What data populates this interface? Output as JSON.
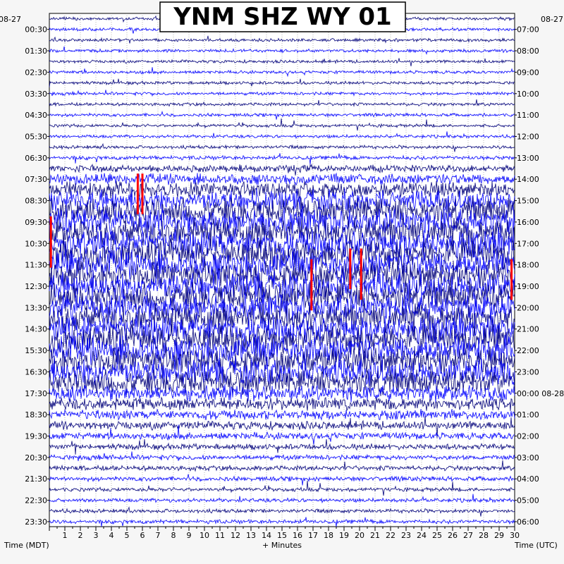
{
  "chart_data": {
    "type": "helicorder",
    "title": "YNM SHZ WY 01",
    "start_date_label": "08-27",
    "end_date_label": "08-28",
    "xlabel": "+ Minutes",
    "left_axis_label": "Time (MDT)",
    "right_axis_label": "Time (UTC)",
    "x_ticks": [
      1,
      2,
      3,
      4,
      5,
      6,
      7,
      8,
      9,
      10,
      11,
      12,
      13,
      14,
      15,
      16,
      17,
      18,
      19,
      20,
      21,
      22,
      23,
      24,
      25,
      26,
      27,
      28,
      29,
      30
    ],
    "xlim": [
      0,
      30
    ],
    "rows_count": 48,
    "minutes_per_row": 30,
    "left_time_labels": [
      "00:30",
      "01:30",
      "02:30",
      "03:30",
      "04:30",
      "05:30",
      "06:30",
      "07:30",
      "08:30",
      "09:30",
      "10:30",
      "11:30",
      "12:30",
      "13:30",
      "14:30",
      "15:30",
      "16:30",
      "17:30",
      "18:30",
      "19:30",
      "20:30",
      "21:30",
      "22:30",
      "23:30"
    ],
    "right_time_labels": [
      "07:00",
      "08:00",
      "09:00",
      "10:00",
      "11:00",
      "12:00",
      "13:00",
      "14:00",
      "15:00",
      "16:00",
      "17:00",
      "18:00",
      "19:00",
      "20:00",
      "21:00",
      "22:00",
      "23:00",
      "00:00 08-28",
      "01:00",
      "02:00",
      "03:00",
      "04:00",
      "05:00",
      "06:00"
    ],
    "trace_colors": [
      "#00007a",
      "#0000ff"
    ],
    "clip_color": "#ff0000",
    "activity_level_by_row": [
      0.05,
      0.05,
      0.05,
      0.05,
      0.05,
      0.05,
      0.05,
      0.05,
      0.05,
      0.05,
      0.05,
      0.05,
      0.06,
      0.08,
      0.2,
      0.35,
      0.55,
      0.75,
      0.9,
      1,
      1,
      1,
      1,
      1,
      1,
      1,
      1,
      1,
      1,
      1,
      1,
      1,
      1,
      0.95,
      0.85,
      0.55,
      0.4,
      0.3,
      0.25,
      0.2,
      0.15,
      0.12,
      0.12,
      0.1,
      0.08,
      0.08,
      0.08,
      0.08
    ],
    "clipped_events": [
      {
        "row": 15,
        "minute": 5.7,
        "rows": 3
      },
      {
        "row": 15,
        "minute": 6.0,
        "rows": 3
      },
      {
        "row": 19,
        "minute": 0.1,
        "rows": 4
      },
      {
        "row": 22,
        "minute": 19.4,
        "rows": 3
      },
      {
        "row": 22,
        "minute": 20.1,
        "rows": 4
      },
      {
        "row": 23,
        "minute": 29.8,
        "rows": 3
      },
      {
        "row": 23,
        "minute": 16.9,
        "rows": 4
      }
    ]
  }
}
